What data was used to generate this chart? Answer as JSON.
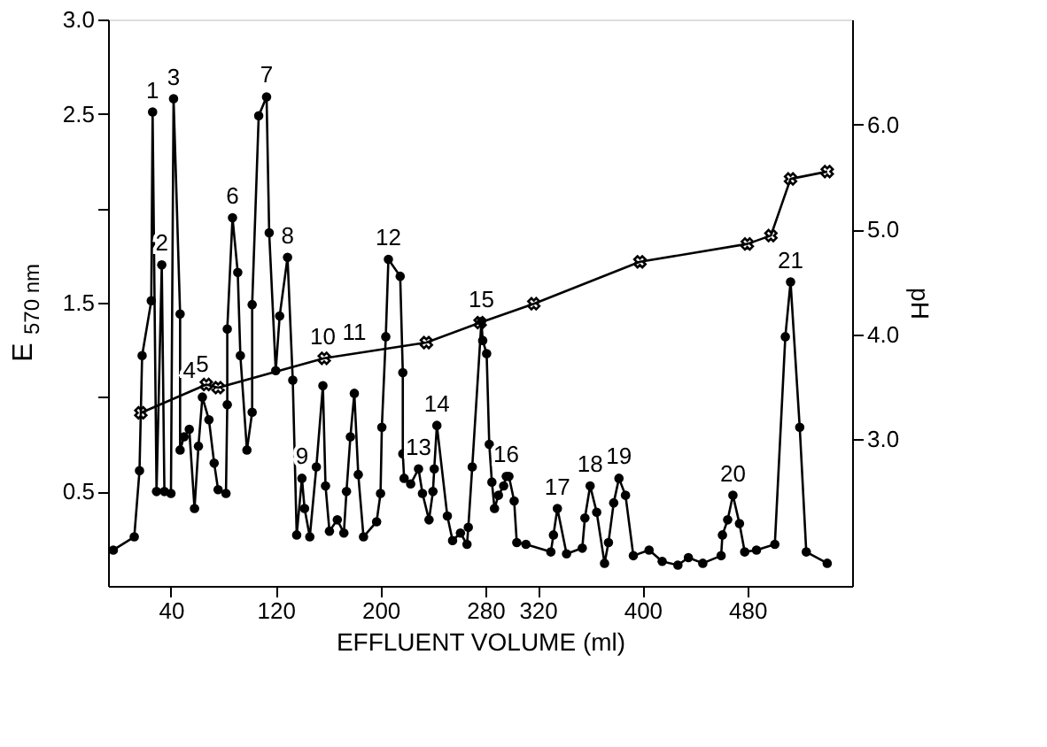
{
  "chart_data": {
    "type": "line",
    "xlabel": "EFFLUENT VOLUME (ml)",
    "ylabel": "E$_{570 nm}$",
    "y2label": "pH",
    "xlim": [
      -8,
      560
    ],
    "xticks": [
      40,
      120,
      200,
      280,
      320,
      400,
      480
    ],
    "ylim": [
      0,
      3.0
    ],
    "yticks": [
      {
        "value": 0.5,
        "label": "0.5"
      },
      {
        "value": 1.0,
        "label": null
      },
      {
        "value": 1.5,
        "label": "1.5"
      },
      {
        "value": 2.0,
        "label": null
      },
      {
        "value": 2.5,
        "label": "2.5"
      },
      {
        "value": 3.0,
        "label": "3.0"
      }
    ],
    "y2lim": [
      1.6,
      7.0
    ],
    "y2ticks": [
      {
        "value": 3.0,
        "label": "3.0"
      },
      {
        "value": 4.0,
        "label": "4.0"
      },
      {
        "value": 5.0,
        "label": "5.0"
      },
      {
        "value": 6.0,
        "label": "6.0"
      }
    ],
    "grid": false,
    "series": [
      {
        "color": "#000000",
        "marker": "circle",
        "x": [
          -4,
          12,
          16,
          18,
          25,
          26,
          29,
          33,
          35,
          40,
          42,
          47,
          47,
          50,
          54,
          58,
          61,
          64,
          69,
          73,
          76,
          82,
          83,
          83,
          87,
          91,
          93,
          98,
          102,
          102,
          107,
          113,
          115,
          120,
          123,
          129,
          133,
          136,
          140,
          142,
          146,
          151,
          156,
          158,
          161,
          167,
          172,
          174,
          177,
          180,
          183,
          187,
          197,
          200,
          201,
          204,
          206,
          215,
          217,
          217,
          218,
          223,
          229,
          232,
          237,
          240,
          241,
          243,
          251,
          255,
          261,
          266,
          267,
          270,
          277,
          278,
          281,
          283,
          285,
          287,
          290,
          294,
          296,
          298,
          302,
          304,
          311,
          330,
          332,
          335,
          342,
          354,
          356,
          360,
          365,
          371,
          374,
          378,
          382,
          387,
          393,
          405,
          415,
          427,
          435,
          446,
          460,
          461,
          465,
          469,
          474,
          478,
          487,
          501,
          509,
          513,
          520,
          525,
          541
        ],
        "values": [
          0.19,
          0.26,
          0.61,
          1.22,
          1.51,
          2.51,
          0.5,
          1.7,
          0.5,
          0.49,
          2.58,
          1.44,
          0.72,
          0.79,
          0.83,
          0.41,
          0.74,
          1.0,
          0.88,
          0.65,
          0.51,
          0.49,
          0.96,
          1.36,
          1.95,
          1.66,
          1.22,
          0.72,
          0.92,
          1.49,
          2.49,
          2.59,
          1.87,
          1.14,
          1.43,
          1.74,
          1.09,
          0.27,
          0.57,
          0.41,
          0.26,
          0.63,
          1.06,
          0.53,
          0.29,
          0.35,
          0.28,
          0.5,
          0.79,
          1.02,
          0.59,
          0.26,
          0.34,
          0.49,
          0.84,
          1.32,
          1.73,
          1.64,
          1.13,
          0.7,
          0.57,
          0.54,
          0.62,
          0.49,
          0.35,
          0.5,
          0.62,
          0.85,
          0.37,
          0.24,
          0.28,
          0.22,
          0.31,
          0.63,
          1.4,
          1.3,
          1.23,
          0.75,
          0.55,
          0.41,
          0.48,
          0.53,
          0.58,
          0.58,
          0.45,
          0.23,
          0.22,
          0.18,
          0.27,
          0.41,
          0.17,
          0.2,
          0.36,
          0.53,
          0.39,
          0.12,
          0.23,
          0.44,
          0.57,
          0.48,
          0.16,
          0.19,
          0.13,
          0.11,
          0.15,
          0.12,
          0.16,
          0.27,
          0.35,
          0.48,
          0.33,
          0.18,
          0.19,
          0.22,
          1.32,
          1.61,
          0.84,
          0.18,
          0.12
        ]
      },
      {
        "color": "#000000",
        "marker": "cross",
        "axis": "y2",
        "x": [
          17,
          67,
          76,
          157,
          235,
          276,
          317,
          398,
          480,
          498,
          513,
          541
        ],
        "values": [
          3.25,
          3.52,
          3.49,
          3.77,
          3.92,
          4.11,
          4.29,
          4.69,
          4.86,
          4.94,
          5.48,
          5.55
        ]
      }
    ],
    "annotations": [
      {
        "text": "1",
        "x": 26,
        "y": 2.51
      },
      {
        "text": "2",
        "x": 33,
        "y": 1.7
      },
      {
        "text": "3",
        "x": 42,
        "y": 2.58
      },
      {
        "text": "4",
        "x": 54,
        "y": 0.83
      },
      {
        "text": "5",
        "x": 64,
        "y": 1.0
      },
      {
        "text": "6",
        "x": 87,
        "y": 1.95
      },
      {
        "text": "7",
        "x": 113,
        "y": 2.59
      },
      {
        "text": "8",
        "x": 129,
        "y": 1.74
      },
      {
        "text": "9",
        "x": 140,
        "y": 0.57
      },
      {
        "text": "10",
        "x": 156,
        "y": 1.06
      },
      {
        "text": "11",
        "x": 180,
        "y": 1.02
      },
      {
        "text": "12",
        "x": 206,
        "y": 1.73
      },
      {
        "text": "13",
        "x": 229,
        "y": 0.62
      },
      {
        "text": "14",
        "x": 243,
        "y": 0.85
      },
      {
        "text": "15",
        "x": 277,
        "y": 1.4
      },
      {
        "text": "16",
        "x": 296,
        "y": 0.58
      },
      {
        "text": "17",
        "x": 335,
        "y": 0.41
      },
      {
        "text": "18",
        "x": 360,
        "y": 0.53
      },
      {
        "text": "19",
        "x": 382,
        "y": 0.57
      },
      {
        "text": "20",
        "x": 469,
        "y": 0.48
      },
      {
        "text": "21",
        "x": 513,
        "y": 1.61
      }
    ]
  }
}
